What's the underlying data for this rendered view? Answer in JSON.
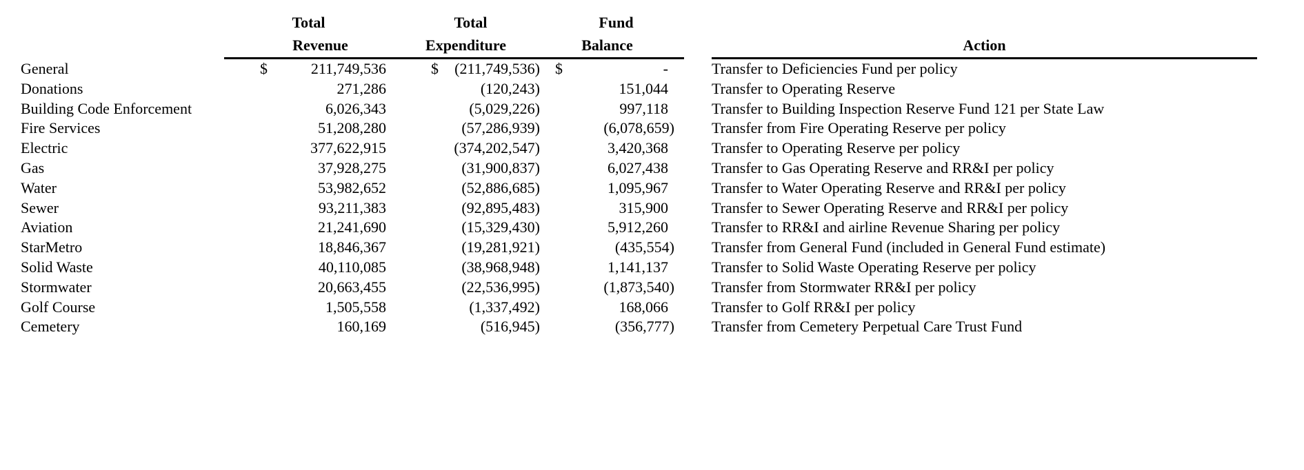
{
  "colors": {
    "text": "#000000",
    "background": "#ffffff",
    "rule": "#000000"
  },
  "table": {
    "columns": {
      "fund_name": {
        "label": ""
      },
      "revenue": {
        "line1": "Total",
        "line2": "Revenue"
      },
      "expenditure": {
        "line1": "Total",
        "line2": "Expenditure"
      },
      "balance": {
        "line1": "Fund",
        "line2": "Balance"
      },
      "action": {
        "label": "Action"
      }
    },
    "rows": [
      {
        "fund": "General",
        "cur_rev": "$",
        "revenue": "211,749,536",
        "cur_exp": "$",
        "expenditure": "(211,749,536)",
        "cur_bal": "$",
        "balance": "-",
        "action": "Transfer to Deficiencies Fund per policy"
      },
      {
        "fund": "Donations",
        "cur_rev": "",
        "revenue": "271,286",
        "cur_exp": "",
        "expenditure": "(120,243)",
        "cur_bal": "",
        "balance": "151,044",
        "action": "Transfer to Operating Reserve"
      },
      {
        "fund": "Building Code Enforcement",
        "cur_rev": "",
        "revenue": "6,026,343",
        "cur_exp": "",
        "expenditure": "(5,029,226)",
        "cur_bal": "",
        "balance": "997,118",
        "action": "Transfer to Building Inspection Reserve Fund 121 per State Law"
      },
      {
        "fund": "Fire Services",
        "cur_rev": "",
        "revenue": "51,208,280",
        "cur_exp": "",
        "expenditure": "(57,286,939)",
        "cur_bal": "",
        "balance": "(6,078,659)",
        "action": "Transfer from Fire Operating Reserve per policy"
      },
      {
        "fund": "Electric",
        "cur_rev": "",
        "revenue": "377,622,915",
        "cur_exp": "",
        "expenditure": "(374,202,547)",
        "cur_bal": "",
        "balance": "3,420,368",
        "action": "Transfer to Operating Reserve per policy"
      },
      {
        "fund": "Gas",
        "cur_rev": "",
        "revenue": "37,928,275",
        "cur_exp": "",
        "expenditure": "(31,900,837)",
        "cur_bal": "",
        "balance": "6,027,438",
        "action": "Transfer to Gas Operating Reserve and RR&I per policy"
      },
      {
        "fund": "Water",
        "cur_rev": "",
        "revenue": "53,982,652",
        "cur_exp": "",
        "expenditure": "(52,886,685)",
        "cur_bal": "",
        "balance": "1,095,967",
        "action": "Transfer to Water Operating Reserve and RR&I per policy"
      },
      {
        "fund": "Sewer",
        "cur_rev": "",
        "revenue": "93,211,383",
        "cur_exp": "",
        "expenditure": "(92,895,483)",
        "cur_bal": "",
        "balance": "315,900",
        "action": "Transfer to Sewer Operating Reserve and RR&I per policy"
      },
      {
        "fund": "Aviation",
        "cur_rev": "",
        "revenue": "21,241,690",
        "cur_exp": "",
        "expenditure": "(15,329,430)",
        "cur_bal": "",
        "balance": "5,912,260",
        "action": "Transfer to RR&I and airline Revenue Sharing per policy"
      },
      {
        "fund": "StarMetro",
        "cur_rev": "",
        "revenue": "18,846,367",
        "cur_exp": "",
        "expenditure": "(19,281,921)",
        "cur_bal": "",
        "balance": "(435,554)",
        "action": "Transfer from General Fund (included in General Fund estimate)"
      },
      {
        "fund": "Solid Waste",
        "cur_rev": "",
        "revenue": "40,110,085",
        "cur_exp": "",
        "expenditure": "(38,968,948)",
        "cur_bal": "",
        "balance": "1,141,137",
        "action": "Transfer to Solid Waste Operating Reserve per policy"
      },
      {
        "fund": "Stormwater",
        "cur_rev": "",
        "revenue": "20,663,455",
        "cur_exp": "",
        "expenditure": "(22,536,995)",
        "cur_bal": "",
        "balance": "(1,873,540)",
        "action": "Transfer from Stormwater RR&I per policy"
      },
      {
        "fund": "Golf Course",
        "cur_rev": "",
        "revenue": "1,505,558",
        "cur_exp": "",
        "expenditure": "(1,337,492)",
        "cur_bal": "",
        "balance": "168,066",
        "action": "Transfer to Golf RR&I per policy"
      },
      {
        "fund": "Cemetery",
        "cur_rev": "",
        "revenue": "160,169",
        "cur_exp": "",
        "expenditure": "(516,945)",
        "cur_bal": "",
        "balance": "(356,777)",
        "action": "Transfer from Cemetery Perpetual Care Trust Fund"
      }
    ]
  }
}
